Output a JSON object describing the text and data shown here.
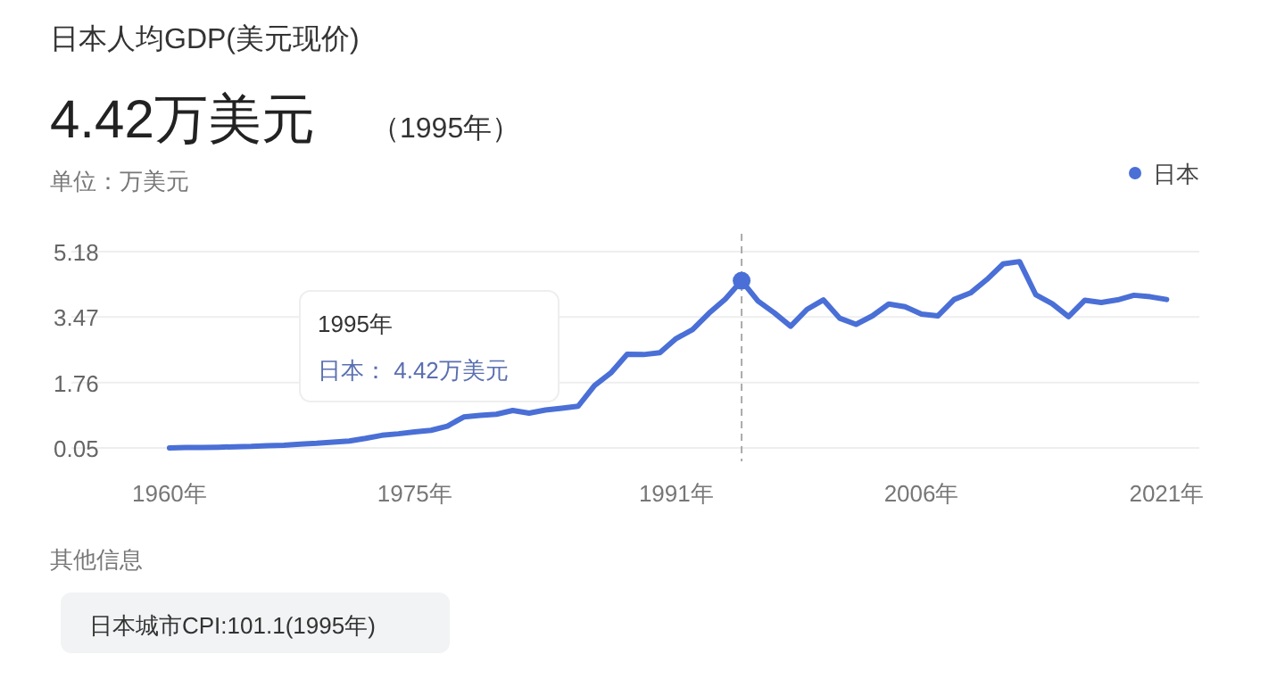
{
  "chart_data": {
    "type": "line",
    "title": "日本人均GDP(美元现价)",
    "subtitle": "4.42万美元",
    "annotations": [
      "（1995年）",
      "单位：万美元",
      "其他信息",
      "日本城市CPI:101.1(1995年)",
      "1995年",
      "日本： 4.42万美元"
    ],
    "x": [
      1960,
      1961,
      1962,
      1963,
      1964,
      1965,
      1966,
      1967,
      1968,
      1969,
      1970,
      1971,
      1972,
      1973,
      1974,
      1975,
      1976,
      1977,
      1978,
      1979,
      1980,
      1981,
      1982,
      1983,
      1984,
      1985,
      1986,
      1987,
      1988,
      1989,
      1990,
      1991,
      1992,
      1993,
      1994,
      1995,
      1996,
      1997,
      1998,
      1999,
      2000,
      2001,
      2002,
      2003,
      2004,
      2005,
      2006,
      2007,
      2008,
      2009,
      2010,
      2011,
      2012,
      2013,
      2014,
      2015,
      2016,
      2017,
      2018,
      2019,
      2020,
      2021
    ],
    "series": [
      {
        "name": "日本",
        "color": "#4a6fd6",
        "values": [
          0.05,
          0.06,
          0.06,
          0.07,
          0.08,
          0.09,
          0.11,
          0.12,
          0.15,
          0.17,
          0.2,
          0.23,
          0.3,
          0.38,
          0.42,
          0.47,
          0.51,
          0.62,
          0.86,
          0.9,
          0.93,
          1.03,
          0.96,
          1.04,
          1.09,
          1.14,
          1.68,
          2.01,
          2.5,
          2.49,
          2.54,
          2.91,
          3.14,
          3.57,
          3.94,
          4.42,
          3.89,
          3.58,
          3.23,
          3.67,
          3.92,
          3.44,
          3.28,
          3.5,
          3.81,
          3.74,
          3.55,
          3.5,
          3.93,
          4.1,
          4.45,
          4.86,
          4.92,
          4.05,
          3.82,
          3.48,
          3.91,
          3.85,
          3.92,
          4.04,
          4.0,
          3.93
        ]
      }
    ],
    "xlim": [
      1954,
      2023
    ],
    "ylim": [
      -0.3,
      5.18
    ],
    "xticks": [
      {
        "value": 1960,
        "label": "1960年"
      },
      {
        "value": 1975,
        "label": "1975年"
      },
      {
        "value": 1991,
        "label": "1991年"
      },
      {
        "value": 2006,
        "label": "2006年"
      },
      {
        "value": 2021,
        "label": "2021年"
      }
    ],
    "yticks": [
      0.05,
      1.76,
      3.47,
      5.18
    ],
    "ref_lines": [
      {
        "axis": "x",
        "value": 1995,
        "color": "#aaaaaa",
        "line_style": "dashed"
      }
    ],
    "grid": "y",
    "legend": "top right",
    "marker": "none",
    "line_style": "solid"
  }
}
